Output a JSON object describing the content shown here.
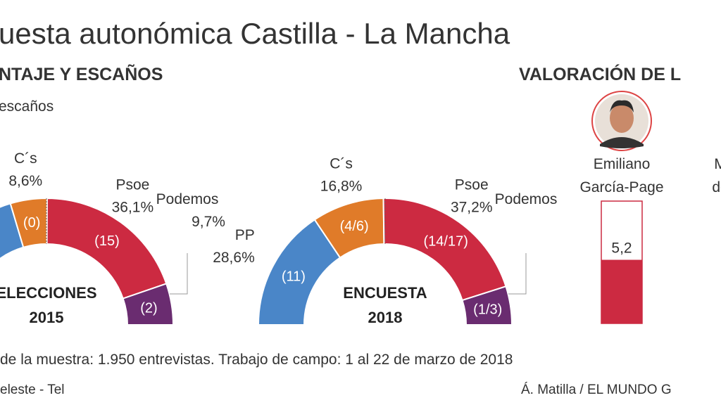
{
  "header": {
    "title": "uesta autonómica Castilla - La Mancha",
    "subtitle": "NTAJE Y ESCAÑOS",
    "legend_note": "escaños",
    "rating_title": "VALORACIÓN DE L"
  },
  "chart_data": [
    {
      "type": "semidonut",
      "center_label": [
        "ELECCIONES",
        "2015"
      ],
      "categories": [
        null,
        "C´s",
        "Psoe",
        "Podemos"
      ],
      "values": [
        37.5,
        8.6,
        36.1,
        9.7
      ],
      "value_labels": [
        null,
        "8,6%",
        "36,1%",
        "9,7%"
      ],
      "seat_labels": [
        null,
        "(0)",
        "(15)",
        "(2)"
      ],
      "colors": [
        "#4a86c8",
        "#e07b29",
        "#cc2a41",
        "#6a2c70"
      ]
    },
    {
      "type": "semidonut",
      "center_label": [
        "ENCUESTA",
        "2018"
      ],
      "categories": [
        "PP",
        "C´s",
        "Psoe",
        "Podemos"
      ],
      "values": [
        28.6,
        16.8,
        37.2,
        9
      ],
      "value_labels": [
        "28,6%",
        "16,8%",
        "37,2%",
        null
      ],
      "seat_labels": [
        "(11)",
        "(4/6)",
        "(14/17)",
        "(1/3)"
      ],
      "colors": [
        "#4a86c8",
        "#e07b29",
        "#cc2a41",
        "#6a2c70"
      ]
    },
    {
      "type": "bar",
      "categories": [
        [
          "Emiliano",
          "García-Page"
        ],
        [
          "M",
          "de"
        ]
      ],
      "values": [
        5.2,
        null
      ],
      "value_labels": [
        "5,2",
        null
      ],
      "ylim": [
        0,
        10
      ],
      "color": "#cc2a41"
    }
  ],
  "footer": {
    "note": "de la muestra: 1.950 entrevistas. Trabajo de campo: 1 al 22 de marzo de 2018",
    "source": "eleste - Tel",
    "credit": "Á. Matilla / EL MUNDO G"
  }
}
